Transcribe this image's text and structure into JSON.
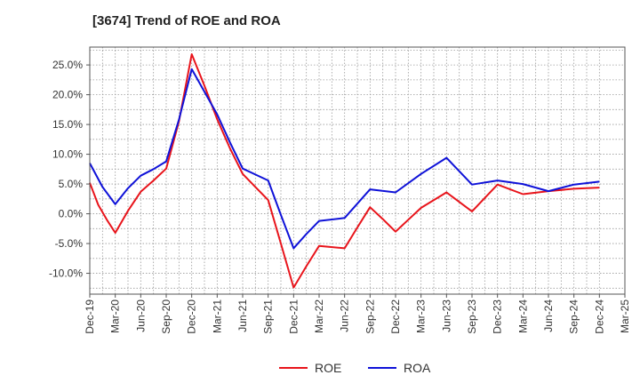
{
  "title": "[3674]  Trend of ROE and ROA",
  "chart_data": {
    "type": "line",
    "title": "[3674]  Trend of ROE and ROA",
    "xlabel": "",
    "ylabel": "",
    "ylim": [
      -13.5,
      28.0
    ],
    "y_ticks": [
      25.0,
      20.0,
      15.0,
      10.0,
      5.0,
      0.0,
      -5.0,
      -10.0
    ],
    "y_tick_labels": [
      "25.0%",
      "20.0%",
      "15.0%",
      "10.0%",
      "5.0%",
      "0.0%",
      "-5.0%",
      "-10.0%"
    ],
    "categories": [
      "Dec-19",
      "Mar-20",
      "Jun-20",
      "Sep-20",
      "Dec-20",
      "Mar-21",
      "Jun-21",
      "Sep-21",
      "Dec-21",
      "Mar-22",
      "Jun-22",
      "Sep-22",
      "Dec-22",
      "Mar-23",
      "Jun-23",
      "Sep-23",
      "Dec-23",
      "Mar-24",
      "Jun-24",
      "Sep-24",
      "Dec-24",
      "Mar-25"
    ],
    "grid": true,
    "legend_position": "bottom",
    "x": [
      0,
      0.5,
      1,
      1.5,
      2,
      2.5,
      3,
      3.5,
      4,
      4.5,
      5,
      5.5,
      6,
      6.5,
      7,
      7.5,
      8,
      8.5,
      9,
      9.5,
      10,
      10.5,
      11,
      11.5,
      12,
      12.5,
      13,
      13.5,
      14,
      14.5,
      15,
      15.5,
      16,
      16.5,
      17,
      17.5,
      18,
      18.5,
      19,
      19.5,
      20
    ],
    "series": [
      {
        "name": "ROE",
        "color": "#e8141b",
        "points": [
          [
            0,
            5.2
          ],
          [
            0.33,
            1.5
          ],
          [
            0.67,
            -1.0
          ],
          [
            1,
            -3.2
          ],
          [
            1.5,
            0.5
          ],
          [
            2,
            3.7
          ],
          [
            2.5,
            5.6
          ],
          [
            3,
            7.6
          ],
          [
            3.5,
            15.5
          ],
          [
            4,
            26.8
          ],
          [
            4.5,
            21.5
          ],
          [
            5,
            15.9
          ],
          [
            5.5,
            11.0
          ],
          [
            6,
            6.7
          ],
          [
            6.5,
            4.5
          ],
          [
            7,
            2.3
          ],
          [
            7.5,
            -5.0
          ],
          [
            8,
            -12.4
          ],
          [
            8.5,
            -8.8
          ],
          [
            9,
            -5.4
          ],
          [
            10,
            -5.8
          ],
          [
            10.5,
            -2.3
          ],
          [
            11,
            1.1
          ],
          [
            11.5,
            -0.9
          ],
          [
            12,
            -3.0
          ],
          [
            12.5,
            -1.0
          ],
          [
            13,
            1.0
          ],
          [
            14,
            3.6
          ],
          [
            15,
            0.4
          ],
          [
            16,
            4.9
          ],
          [
            17,
            3.3
          ],
          [
            18,
            3.8
          ],
          [
            19,
            4.2
          ],
          [
            20,
            4.4
          ]
        ]
      },
      {
        "name": "ROA",
        "color": "#0f12d8",
        "points": [
          [
            0,
            8.5
          ],
          [
            0.5,
            4.5
          ],
          [
            1,
            1.6
          ],
          [
            1.5,
            4.3
          ],
          [
            2,
            6.4
          ],
          [
            2.5,
            7.5
          ],
          [
            3,
            8.8
          ],
          [
            3.5,
            15.8
          ],
          [
            4,
            24.3
          ],
          [
            4.5,
            20.5
          ],
          [
            5,
            16.7
          ],
          [
            5.5,
            12.0
          ],
          [
            6,
            7.6
          ],
          [
            6.5,
            6.6
          ],
          [
            7,
            5.6
          ],
          [
            7.5,
            -0.2
          ],
          [
            8,
            -5.8
          ],
          [
            8.5,
            -3.4
          ],
          [
            9,
            -1.2
          ],
          [
            10,
            -0.7
          ],
          [
            10.5,
            1.7
          ],
          [
            11,
            4.1
          ],
          [
            12,
            3.6
          ],
          [
            13,
            6.7
          ],
          [
            14,
            9.4
          ],
          [
            15,
            4.9
          ],
          [
            16,
            5.6
          ],
          [
            17,
            5.0
          ],
          [
            18,
            3.8
          ],
          [
            19,
            4.9
          ],
          [
            20,
            5.4
          ]
        ]
      }
    ]
  }
}
